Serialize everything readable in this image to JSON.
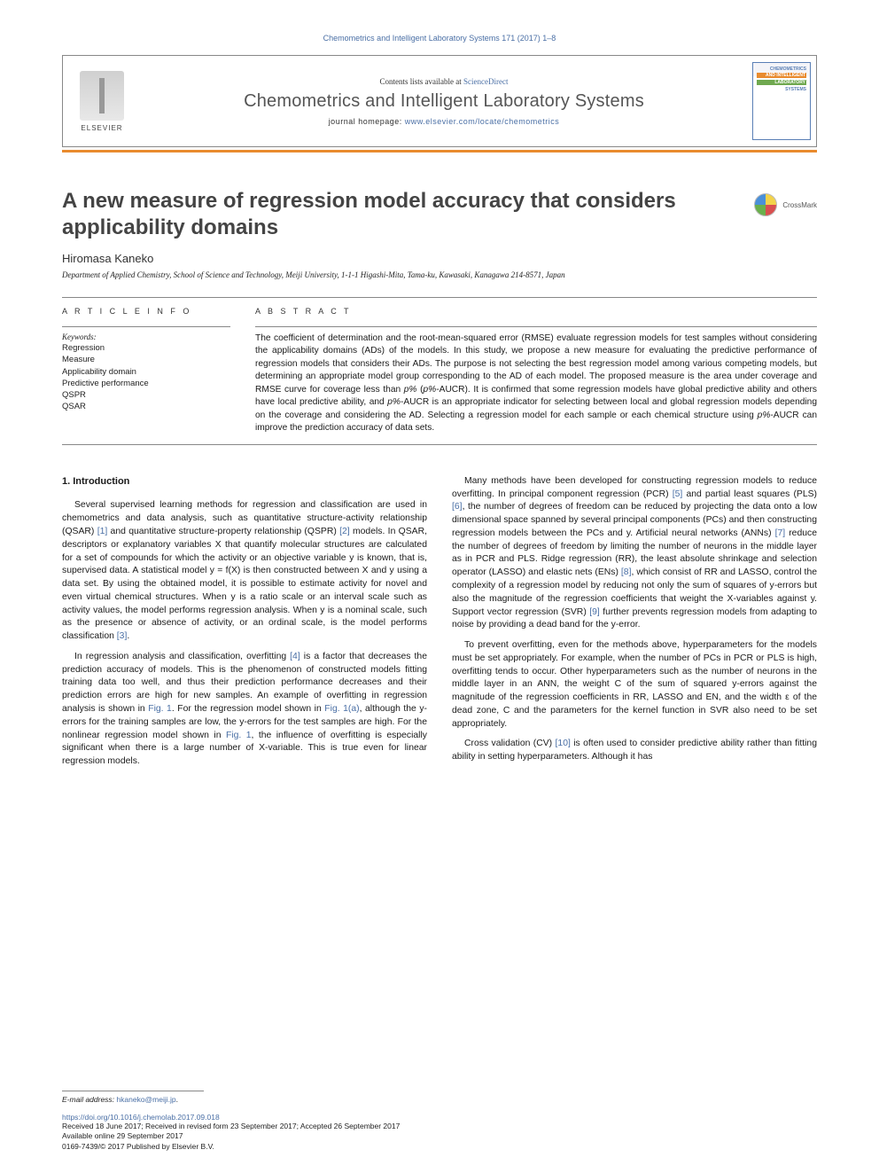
{
  "running_head": "Chemometrics and Intelligent Laboratory Systems 171 (2017) 1–8",
  "masthead": {
    "publisher": "ELSEVIER",
    "contents_prefix": "Contents lists available at ",
    "contents_link": "ScienceDirect",
    "journal": "Chemometrics and Intelligent Laboratory Systems",
    "homepage_prefix": "journal homepage: ",
    "homepage_url": "www.elsevier.com/locate/chemometrics",
    "cover_lines": [
      "CHEMOMETRICS",
      "AND INTELLIGENT",
      "LABORATORY",
      "SYSTEMS"
    ]
  },
  "crossmark_label": "CrossMark",
  "title": "A new measure of regression model accuracy that considers applicability domains",
  "author": "Hiromasa Kaneko",
  "affiliation": "Department of Applied Chemistry, School of Science and Technology, Meiji University, 1-1-1 Higashi-Mita, Tama-ku, Kawasaki, Kanagawa 214-8571, Japan",
  "labels": {
    "article_info": "A R T I C L E  I N F O",
    "abstract": "A B S T R A C T",
    "keywords": "Keywords:"
  },
  "keywords": [
    "Regression",
    "Measure",
    "Applicability domain",
    "Predictive performance",
    "QSPR",
    "QSAR"
  ],
  "abstract": "The coefficient of determination and the root-mean-squared error (RMSE) evaluate regression models for test samples without considering the applicability domains (ADs) of the models. In this study, we propose a new measure for evaluating the predictive performance of regression models that considers their ADs. The purpose is not selecting the best regression model among various competing models, but determining an appropriate model group corresponding to the AD of each model. The proposed measure is the area under coverage and RMSE curve for coverage less than p% (p%-AUCR). It is confirmed that some regression models have global predictive ability and others have local predictive ability, and p%-AUCR is an appropriate indicator for selecting between local and global regression models depending on the coverage and considering the AD. Selecting a regression model for each sample or each chemical structure using p%-AUCR can improve the prediction accuracy of data sets.",
  "section_heading": "1. Introduction",
  "paragraphs": {
    "p1": "Several supervised learning methods for regression and classification are used in chemometrics and data analysis, such as quantitative structure-activity relationship (QSAR) [1] and quantitative structure-property relationship (QSPR) [2] models. In QSAR, descriptors or explanatory variables X that quantify molecular structures are calculated for a set of compounds for which the activity or an objective variable y is known, that is, supervised data. A statistical model y = f(X) is then constructed between X and y using a data set. By using the obtained model, it is possible to estimate activity for novel and even virtual chemical structures. When y is a ratio scale or an interval scale such as activity values, the model performs regression analysis. When y is a nominal scale, such as the presence or absence of activity, or an ordinal scale, is the model performs classification [3].",
    "p2": "In regression analysis and classification, overfitting [4] is a factor that decreases the prediction accuracy of models. This is the phenomenon of constructed models fitting training data too well, and thus their prediction performance decreases and their prediction errors are high for new samples. An example of overfitting in regression analysis is shown in Fig. 1. For the regression model shown in Fig. 1(a), although the y-errors for the training samples are low, the y-errors for the test samples are high. For the nonlinear regression model shown in Fig. 1, the influence of overfitting is especially significant when there is a large number of X-variable. This is true even for linear regression models.",
    "p3": "Many methods have been developed for constructing regression models to reduce overfitting. In principal component regression (PCR) [5] and partial least squares (PLS) [6], the number of degrees of freedom can be reduced by projecting the data onto a low dimensional space spanned by several principal components (PCs) and then constructing regression models between the PCs and y. Artificial neural networks (ANNs) [7] reduce the number of degrees of freedom by limiting the number of neurons in the middle layer as in PCR and PLS. Ridge regression (RR), the least absolute shrinkage and selection operator (LASSO) and elastic nets (ENs) [8], which consist of RR and LASSO, control the complexity of a regression model by reducing not only the sum of squares of y-errors but also the magnitude of the regression coefficients that weight the X-variables against y. Support vector regression (SVR) [9] further prevents regression models from adapting to noise by providing a dead band for the y-error.",
    "p4": "To prevent overfitting, even for the methods above, hyperparameters for the models must be set appropriately. For example, when the number of PCs in PCR or PLS is high, overfitting tends to occur. Other hyperparameters such as the number of neurons in the middle layer in an ANN, the weight C of the sum of squared y-errors against the magnitude of the regression coefficients in RR, LASSO and EN, and the width ε of the dead zone, C and the parameters for the kernel function in SVR also need to be set appropriately.",
    "p5": "Cross validation (CV) [10] is often used to consider predictive ability rather than fitting ability in setting hyperparameters. Although it has"
  },
  "footer": {
    "email_label": "E-mail address: ",
    "email": "hkaneko@meiji.jp",
    "email_suffix": ".",
    "doi": "https://doi.org/10.1016/j.chemolab.2017.09.018",
    "history": "Received 18 June 2017; Received in revised form 23 September 2017; Accepted 26 September 2017",
    "online": "Available online 29 September 2017",
    "copyright": "0169-7439/© 2017 Published by Elsevier B.V."
  },
  "colors": {
    "link": "#4a6fa5",
    "accent": "#e98b2e",
    "text": "#1a1a1a",
    "rule": "#888888"
  }
}
